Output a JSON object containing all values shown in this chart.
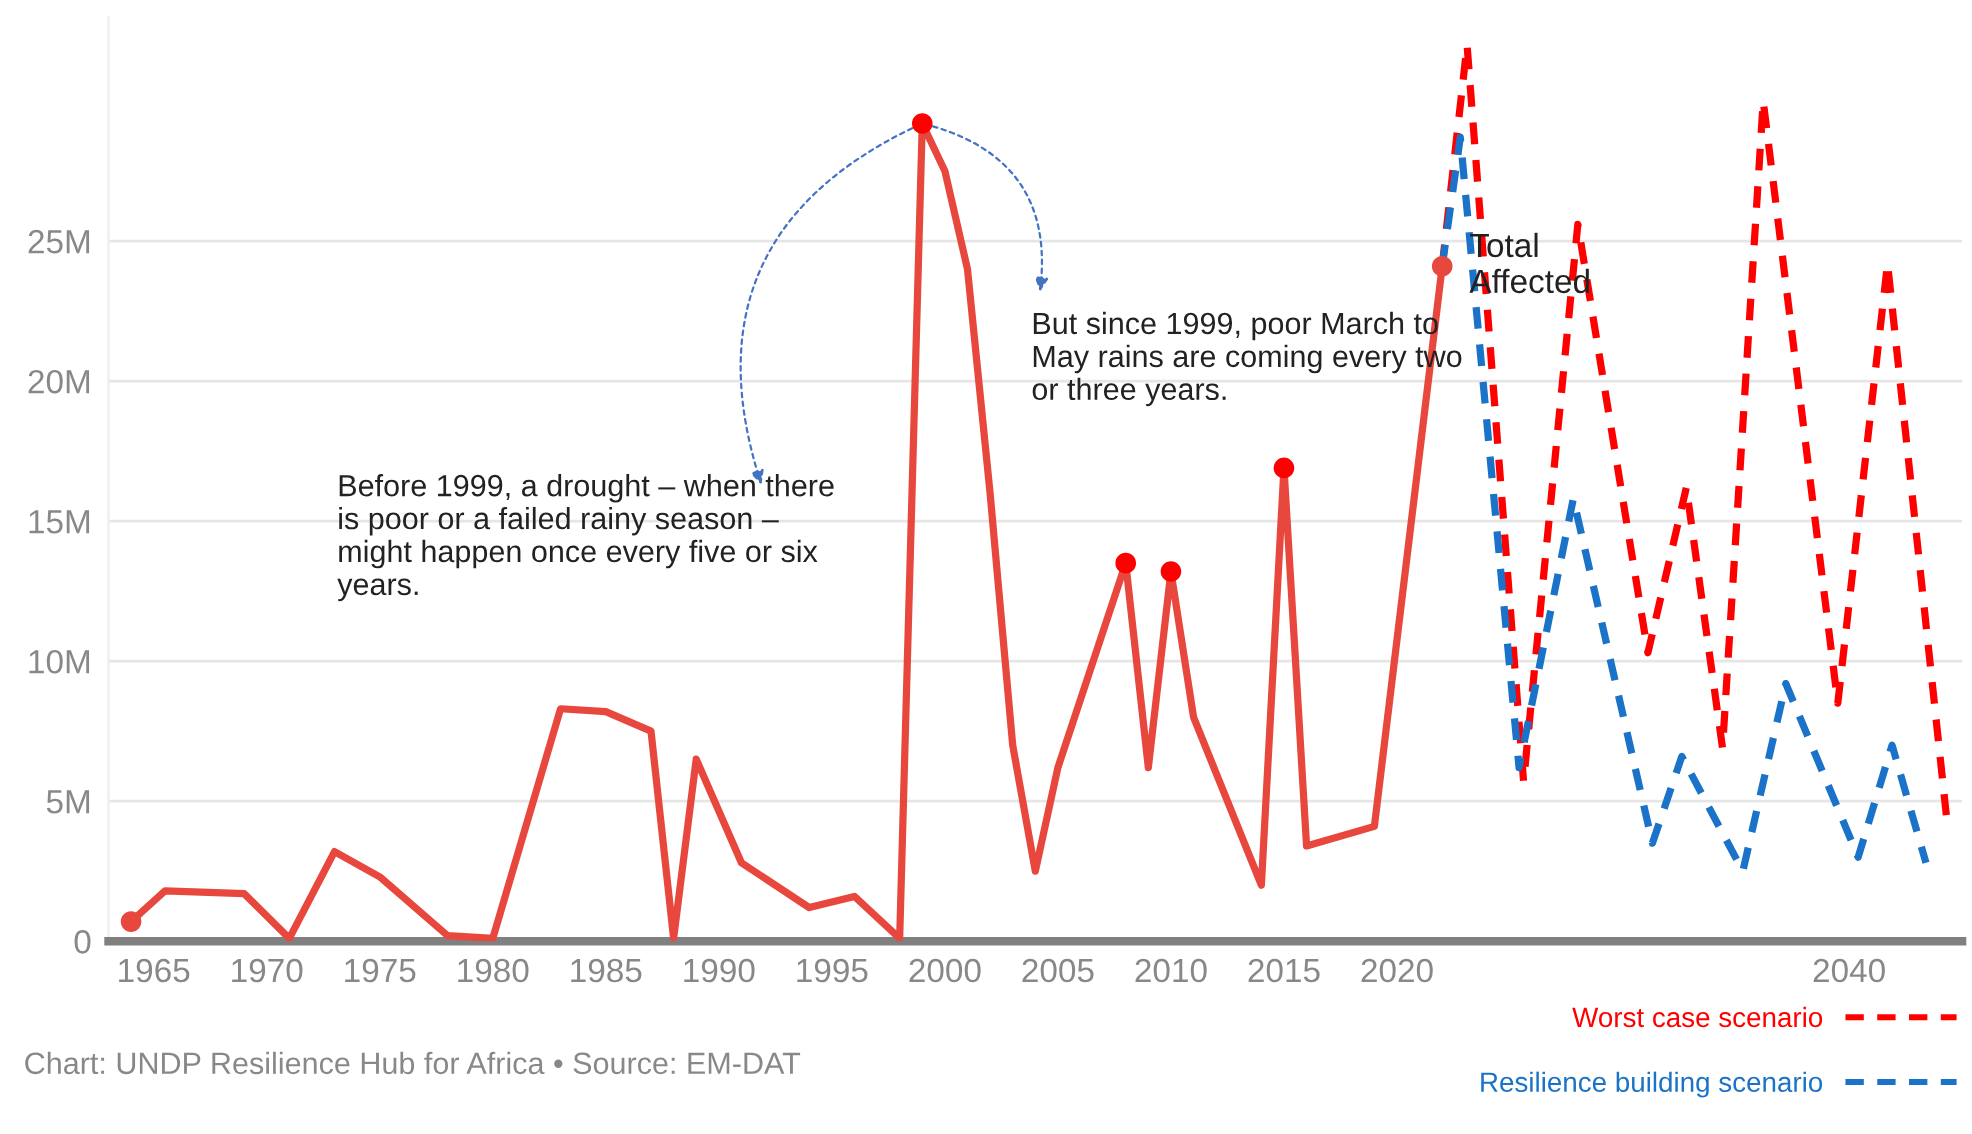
{
  "chart_data": {
    "type": "line",
    "annotations": [
      "Before 1999, a drought – when there is poor or a failed rainy season – might happen once every five or six years.",
      "But since 1999, poor March to May rains are coming every two or three years.",
      "Chart: UNDP Resilience Hub for Africa • Source: EM-DAT"
    ],
    "series": [
      {
        "name": "Total Affected",
        "color": "#e8473d",
        "line_style": "solid",
        "x": [
          1964,
          1965.5,
          1969,
          1971,
          1973,
          1975,
          1978,
          1980,
          1983,
          1985,
          1987,
          1988,
          1989,
          1991,
          1994,
          1996,
          1998,
          1999,
          2000,
          2001,
          2002,
          2003,
          2004,
          2005,
          2008,
          2009,
          2010,
          2011,
          2014,
          2015,
          2016,
          2019,
          2022
        ],
        "values": [
          700000,
          1800000,
          1700000,
          100000,
          3200000,
          2300000,
          200000,
          100000,
          8300000,
          8200000,
          7500000,
          100000,
          6500000,
          2800000,
          1200000,
          1600000,
          100000,
          29200000,
          27500000,
          24000000,
          16000000,
          7000000,
          2500000,
          6200000,
          13500000,
          6200000,
          13200000,
          8000000,
          2000000,
          16900000,
          3400000,
          4100000,
          24100000
        ]
      },
      {
        "type": "scatter",
        "marker": "circle",
        "color": "#ff0000",
        "colors": [
          "#e8473d",
          "#ff0000",
          "#ff0000",
          "#ff0000",
          "#ff0000",
          "#e8473d"
        ],
        "x": [
          1964,
          1999,
          2008,
          2010,
          2015,
          2022
        ],
        "values": [
          700000,
          29200000,
          13500000,
          13200000,
          16900000,
          24100000
        ]
      },
      {
        "name": "Worst case scenario",
        "color": "#ff0000",
        "line_style": "dashed",
        "x": [
          2022,
          2023.1,
          2025.6,
          2028,
          2031.1,
          2032.8,
          2034.4,
          2036.2,
          2039.5,
          2041.7,
          2044.3
        ],
        "values": [
          24100000,
          32000000,
          5700000,
          25600000,
          10300000,
          16200000,
          6900000,
          30000000,
          8500000,
          24200000,
          4500000
        ]
      },
      {
        "name": "Resilience building scenario",
        "color": "#1a73c8",
        "line_style": "dashed",
        "x": [
          2022,
          2022.8,
          2025.4,
          2027.8,
          2031.3,
          2032.6,
          2035.3,
          2037.2,
          2040.4,
          2041.9,
          2043.4
        ],
        "values": [
          24100000,
          28700000,
          6200000,
          15800000,
          3500000,
          6600000,
          2500000,
          9200000,
          3000000,
          7000000,
          2800000
        ]
      }
    ],
    "xlim": [
      1963,
      2045
    ],
    "xticks": [
      1965,
      1970,
      1975,
      1980,
      1985,
      1990,
      1995,
      2000,
      2005,
      2010,
      2015,
      2020,
      2040
    ],
    "ylim": [
      0,
      33000000
    ],
    "yticks": [
      0,
      {
        "value": 5000000,
        "label": "5M"
      },
      {
        "value": 10000000,
        "label": "10M"
      },
      {
        "value": 15000000,
        "label": "15M"
      },
      {
        "value": 20000000,
        "label": "20M"
      },
      {
        "value": 25000000,
        "label": "25M"
      }
    ],
    "grid": "y",
    "legend": "bottom right"
  }
}
